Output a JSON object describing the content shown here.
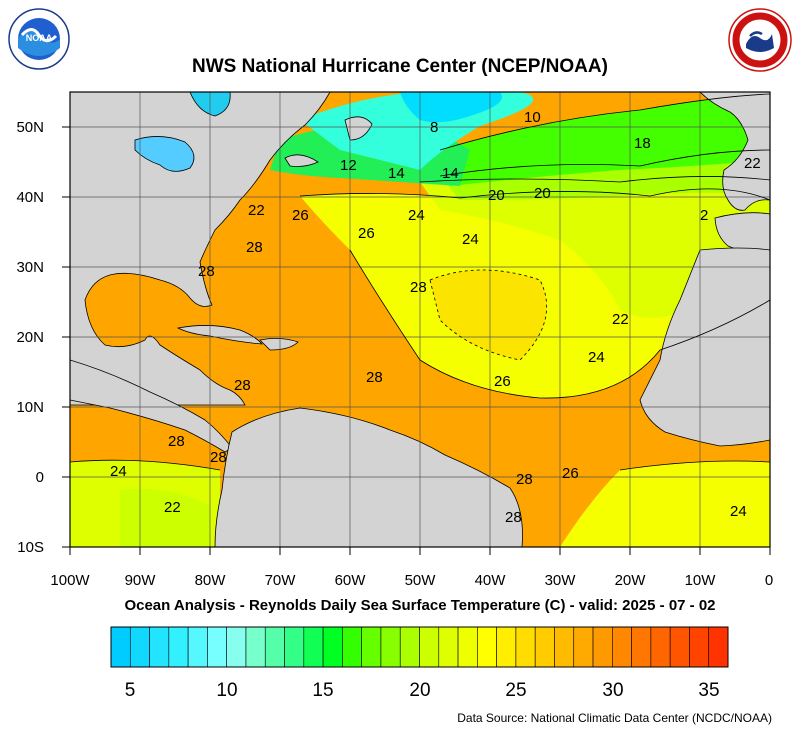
{
  "header": {
    "title": "NWS National Hurricane Center (NCEP/NOAA)"
  },
  "logos": {
    "left": {
      "name": "noaa-logo",
      "text": "NOAA",
      "ring_text": "NATIONAL OCEANIC AND ATMOSPHERIC ADMINISTRATION · U.S. DEPARTMENT OF COMMERCE"
    },
    "right": {
      "name": "nws-logo",
      "ring_text": "NATIONAL WEATHER SERVICE"
    }
  },
  "map": {
    "lon_labels": [
      "100W",
      "90W",
      "80W",
      "70W",
      "60W",
      "50W",
      "40W",
      "30W",
      "20W",
      "10W",
      "0"
    ],
    "lat_labels": [
      "50N",
      "40N",
      "30N",
      "20N",
      "10N",
      "0",
      "10S"
    ],
    "contour_labels": [
      "10",
      "8",
      "18",
      "22",
      "12",
      "14",
      "14",
      "20",
      "20",
      "2",
      "22",
      "26",
      "24",
      "26",
      "24",
      "28",
      "28",
      "28",
      "22",
      "24",
      "28",
      "28",
      "26",
      "28",
      "28",
      "24",
      "28",
      "26",
      "22",
      "24",
      "28"
    ]
  },
  "colors": {
    "land": "#d3d3d3",
    "sst_10": "#00d8ff",
    "sst_14": "#33ffcc",
    "sst_18": "#22ff22",
    "sst_22": "#ccff00",
    "sst_24": "#f5ff00",
    "sst_26": "#ffcc00",
    "sst_28": "#ffa500"
  },
  "colorbar": {
    "tick_labels": [
      "5",
      "10",
      "15",
      "20",
      "25",
      "30",
      "35"
    ],
    "swatches": [
      "#00ccff",
      "#11d8ff",
      "#22e4ff",
      "#33f0ff",
      "#55f8ff",
      "#77ffff",
      "#88ffee",
      "#77ffcc",
      "#55ffaa",
      "#33ff88",
      "#11ff55",
      "#00ff22",
      "#33ff00",
      "#66ff00",
      "#88ff00",
      "#aaff00",
      "#ccff00",
      "#ddff00",
      "#eeff00",
      "#ffff00",
      "#ffee00",
      "#ffdd00",
      "#ffcc00",
      "#ffbb00",
      "#ffaa00",
      "#ff9900",
      "#ff8800",
      "#ff7700",
      "#ff6600",
      "#ff5500",
      "#ff4400",
      "#ff3300"
    ]
  },
  "footer": {
    "subtitle": "Ocean Analysis - Reynolds Daily Sea Surface Temperature (C) - valid: 2025 - 07 - 02",
    "source": "Data Source: National Climatic Data Center (NCDC/NOAA)"
  }
}
